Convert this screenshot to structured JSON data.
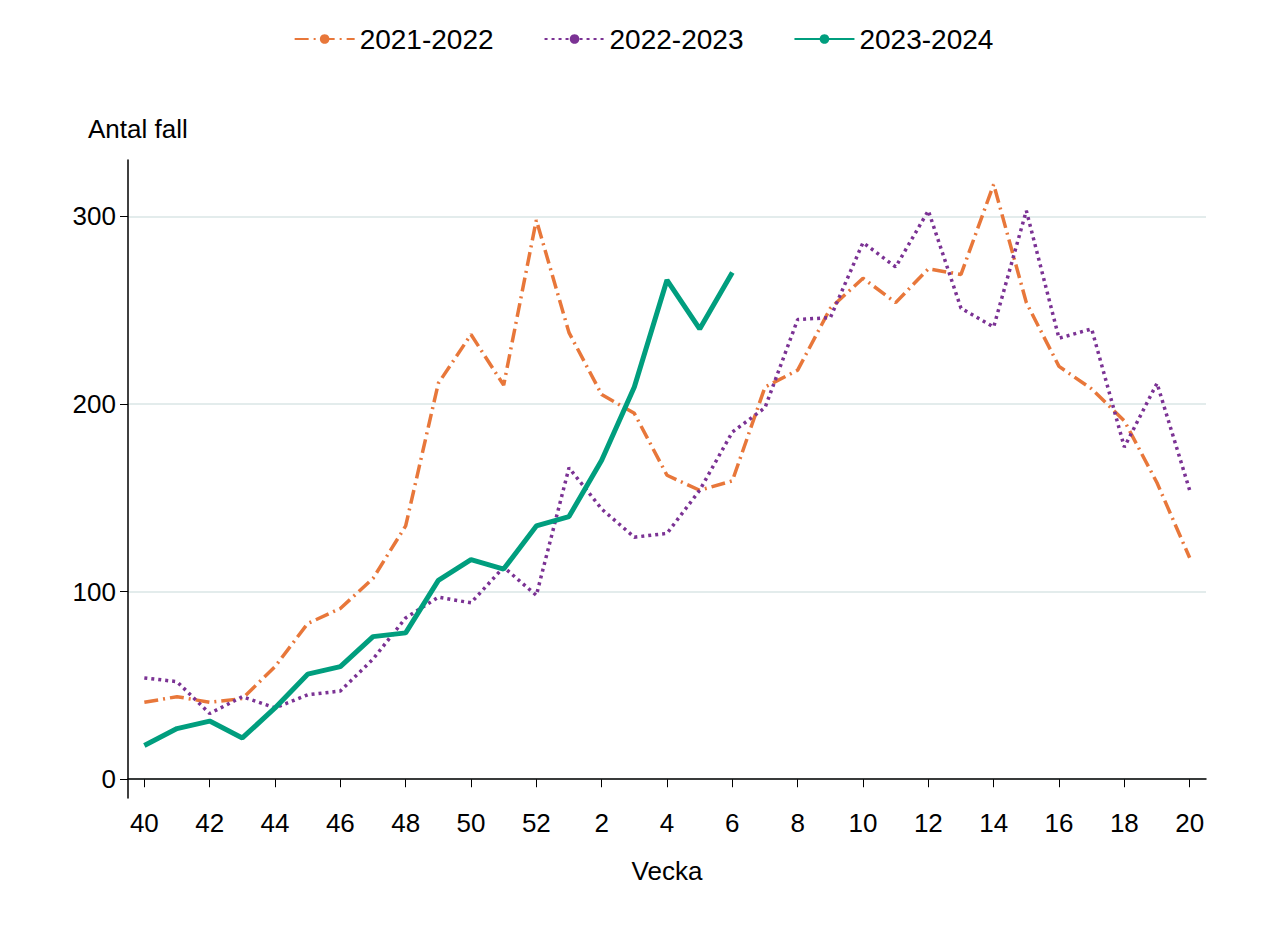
{
  "chart_data": {
    "type": "line",
    "y_label": "Antal fall",
    "x_label": "Vecka",
    "categories": [
      40,
      null,
      42,
      null,
      44,
      null,
      46,
      null,
      48,
      null,
      50,
      null,
      52,
      null,
      2,
      null,
      4,
      null,
      6,
      null,
      8,
      null,
      10,
      null,
      12,
      null,
      14,
      null,
      16,
      null,
      18,
      null,
      20
    ],
    "series": [
      {
        "name": "2021-2022",
        "color": "#e8773a",
        "line_style": "dashdot",
        "values": [
          41,
          44,
          41,
          43,
          60,
          83,
          91,
          107,
          135,
          211,
          237,
          210,
          298,
          238,
          205,
          195,
          162,
          154,
          159,
          209,
          218,
          251,
          267,
          254,
          272,
          269,
          317,
          254,
          220,
          208,
          191,
          158,
          118
        ]
      },
      {
        "name": "2022-2023",
        "color": "#7b3294",
        "line_style": "dotted",
        "values": [
          54,
          52,
          35,
          44,
          38,
          45,
          47,
          64,
          86,
          97,
          94,
          113,
          98,
          166,
          144,
          129,
          131,
          154,
          185,
          198,
          245,
          246,
          286,
          273,
          303,
          251,
          241,
          303,
          235,
          240,
          177,
          211,
          154
        ]
      },
      {
        "name": "2023-2024",
        "color": "#009e7e",
        "line_style": "solid",
        "values": [
          18,
          27,
          31,
          22,
          38,
          56,
          60,
          76,
          78,
          106,
          117,
          112,
          135,
          140,
          170,
          209,
          266,
          240,
          270,
          null,
          null,
          null,
          null,
          null,
          null,
          null,
          null,
          null,
          null,
          null,
          null,
          null,
          null
        ]
      }
    ],
    "ylim": [
      -10,
      330
    ],
    "yticks": [
      0,
      100,
      200,
      300
    ],
    "grid": true,
    "legend": "top"
  }
}
